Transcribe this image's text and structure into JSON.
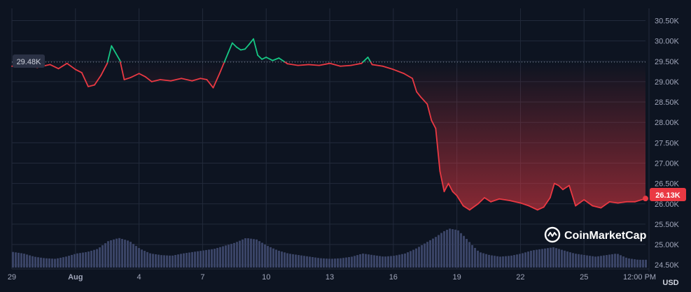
{
  "chart_data": {
    "type": "line",
    "brand": "CoinMarketCap",
    "currency": "USD",
    "reference_value": 29.48,
    "reference_label": "29.48K",
    "current_value": 26.13,
    "current_label": "26.13K",
    "ylim": [
      24.4,
      30.8
    ],
    "yticks": [
      "24.50K",
      "25.00K",
      "25.50K",
      "26.00K",
      "26.50K",
      "27.00K",
      "27.50K",
      "28.00K",
      "28.50K",
      "29.00K",
      "29.50K",
      "30.00K",
      "30.50K"
    ],
    "ytick_values": [
      24.5,
      25.0,
      25.5,
      26.0,
      26.5,
      27.0,
      27.5,
      28.0,
      28.5,
      29.0,
      29.5,
      30.0,
      30.5
    ],
    "xlim": [
      29.0,
      58.9
    ],
    "xticks": [
      "29",
      "Aug",
      "4",
      "7",
      "10",
      "13",
      "16",
      "19",
      "22",
      "25",
      "12:00 PM"
    ],
    "xtick_values": [
      29.0,
      32.0,
      35.0,
      38.0,
      41.0,
      44.0,
      47.0,
      50.0,
      53.0,
      56.0,
      58.5
    ],
    "colors": {
      "up": "#16c784",
      "down": "#ea3943",
      "volume": "#3a4466",
      "grid": "#222a3b",
      "background": "#0d1421"
    },
    "series": [
      {
        "values": [
          [
            29.0,
            29.38
          ],
          [
            29.6,
            29.4
          ],
          [
            30.2,
            29.35
          ],
          [
            30.8,
            29.42
          ],
          [
            31.2,
            29.32
          ],
          [
            31.6,
            29.45
          ],
          [
            32.0,
            29.3
          ],
          [
            32.3,
            29.22
          ],
          [
            32.6,
            28.88
          ],
          [
            32.9,
            28.92
          ],
          [
            33.2,
            29.15
          ],
          [
            33.5,
            29.45
          ],
          [
            33.7,
            29.88
          ],
          [
            33.9,
            29.7
          ],
          [
            34.1,
            29.52
          ],
          [
            34.3,
            29.05
          ],
          [
            34.6,
            29.1
          ],
          [
            35.0,
            29.2
          ],
          [
            35.3,
            29.12
          ],
          [
            35.6,
            29.0
          ],
          [
            36.0,
            29.05
          ],
          [
            36.5,
            29.02
          ],
          [
            37.0,
            29.08
          ],
          [
            37.5,
            29.02
          ],
          [
            37.9,
            29.08
          ],
          [
            38.2,
            29.05
          ],
          [
            38.5,
            28.85
          ],
          [
            38.8,
            29.2
          ],
          [
            39.0,
            29.45
          ],
          [
            39.2,
            29.7
          ],
          [
            39.4,
            29.95
          ],
          [
            39.6,
            29.85
          ],
          [
            39.8,
            29.78
          ],
          [
            40.0,
            29.8
          ],
          [
            40.2,
            29.92
          ],
          [
            40.4,
            30.05
          ],
          [
            40.6,
            29.65
          ],
          [
            40.8,
            29.55
          ],
          [
            41.0,
            29.6
          ],
          [
            41.3,
            29.52
          ],
          [
            41.6,
            29.58
          ],
          [
            42.0,
            29.44
          ],
          [
            42.5,
            29.4
          ],
          [
            43.0,
            29.42
          ],
          [
            43.5,
            29.4
          ],
          [
            44.0,
            29.45
          ],
          [
            44.5,
            29.38
          ],
          [
            45.0,
            29.4
          ],
          [
            45.5,
            29.45
          ],
          [
            45.8,
            29.6
          ],
          [
            46.0,
            29.42
          ],
          [
            46.5,
            29.38
          ],
          [
            47.0,
            29.3
          ],
          [
            47.5,
            29.2
          ],
          [
            47.9,
            29.08
          ],
          [
            48.1,
            28.75
          ],
          [
            48.3,
            28.62
          ],
          [
            48.6,
            28.45
          ],
          [
            48.8,
            28.05
          ],
          [
            49.0,
            27.85
          ],
          [
            49.2,
            26.8
          ],
          [
            49.4,
            26.3
          ],
          [
            49.6,
            26.5
          ],
          [
            49.8,
            26.3
          ],
          [
            50.0,
            26.2
          ],
          [
            50.3,
            25.95
          ],
          [
            50.6,
            25.85
          ],
          [
            51.0,
            26.0
          ],
          [
            51.3,
            26.15
          ],
          [
            51.6,
            26.05
          ],
          [
            52.0,
            26.12
          ],
          [
            52.5,
            26.08
          ],
          [
            53.0,
            26.02
          ],
          [
            53.4,
            25.95
          ],
          [
            53.8,
            25.85
          ],
          [
            54.1,
            25.92
          ],
          [
            54.4,
            26.15
          ],
          [
            54.6,
            26.5
          ],
          [
            54.8,
            26.45
          ],
          [
            55.0,
            26.35
          ],
          [
            55.3,
            26.45
          ],
          [
            55.6,
            25.95
          ],
          [
            56.0,
            26.1
          ],
          [
            56.4,
            25.95
          ],
          [
            56.8,
            25.9
          ],
          [
            57.2,
            26.05
          ],
          [
            57.6,
            26.02
          ],
          [
            58.0,
            26.05
          ],
          [
            58.4,
            26.05
          ],
          [
            58.9,
            26.13
          ]
        ]
      }
    ],
    "volume": [
      [
        29.0,
        0.5
      ],
      [
        29.5,
        0.45
      ],
      [
        30.0,
        0.35
      ],
      [
        30.5,
        0.3
      ],
      [
        31.0,
        0.28
      ],
      [
        31.5,
        0.35
      ],
      [
        32.0,
        0.45
      ],
      [
        32.5,
        0.5
      ],
      [
        33.0,
        0.6
      ],
      [
        33.5,
        0.85
      ],
      [
        34.0,
        0.95
      ],
      [
        34.5,
        0.85
      ],
      [
        35.0,
        0.6
      ],
      [
        35.5,
        0.45
      ],
      [
        36.0,
        0.4
      ],
      [
        36.5,
        0.38
      ],
      [
        37.0,
        0.45
      ],
      [
        37.5,
        0.5
      ],
      [
        38.0,
        0.55
      ],
      [
        38.5,
        0.6
      ],
      [
        39.0,
        0.7
      ],
      [
        39.5,
        0.8
      ],
      [
        40.0,
        0.95
      ],
      [
        40.5,
        0.9
      ],
      [
        41.0,
        0.7
      ],
      [
        41.5,
        0.55
      ],
      [
        42.0,
        0.45
      ],
      [
        42.5,
        0.4
      ],
      [
        43.0,
        0.35
      ],
      [
        43.5,
        0.3
      ],
      [
        44.0,
        0.28
      ],
      [
        44.5,
        0.3
      ],
      [
        45.0,
        0.35
      ],
      [
        45.5,
        0.45
      ],
      [
        46.0,
        0.4
      ],
      [
        46.5,
        0.35
      ],
      [
        47.0,
        0.38
      ],
      [
        47.5,
        0.45
      ],
      [
        48.0,
        0.6
      ],
      [
        48.5,
        0.8
      ],
      [
        49.0,
        1.0
      ],
      [
        49.3,
        1.15
      ],
      [
        49.6,
        1.25
      ],
      [
        50.0,
        1.2
      ],
      [
        50.3,
        1.0
      ],
      [
        50.7,
        0.7
      ],
      [
        51.0,
        0.5
      ],
      [
        51.5,
        0.4
      ],
      [
        52.0,
        0.35
      ],
      [
        52.5,
        0.38
      ],
      [
        53.0,
        0.45
      ],
      [
        53.5,
        0.55
      ],
      [
        54.0,
        0.6
      ],
      [
        54.5,
        0.65
      ],
      [
        55.0,
        0.55
      ],
      [
        55.5,
        0.45
      ],
      [
        56.0,
        0.4
      ],
      [
        56.5,
        0.35
      ],
      [
        57.0,
        0.4
      ],
      [
        57.5,
        0.45
      ],
      [
        58.0,
        0.3
      ],
      [
        58.5,
        0.25
      ],
      [
        58.9,
        0.25
      ]
    ]
  }
}
